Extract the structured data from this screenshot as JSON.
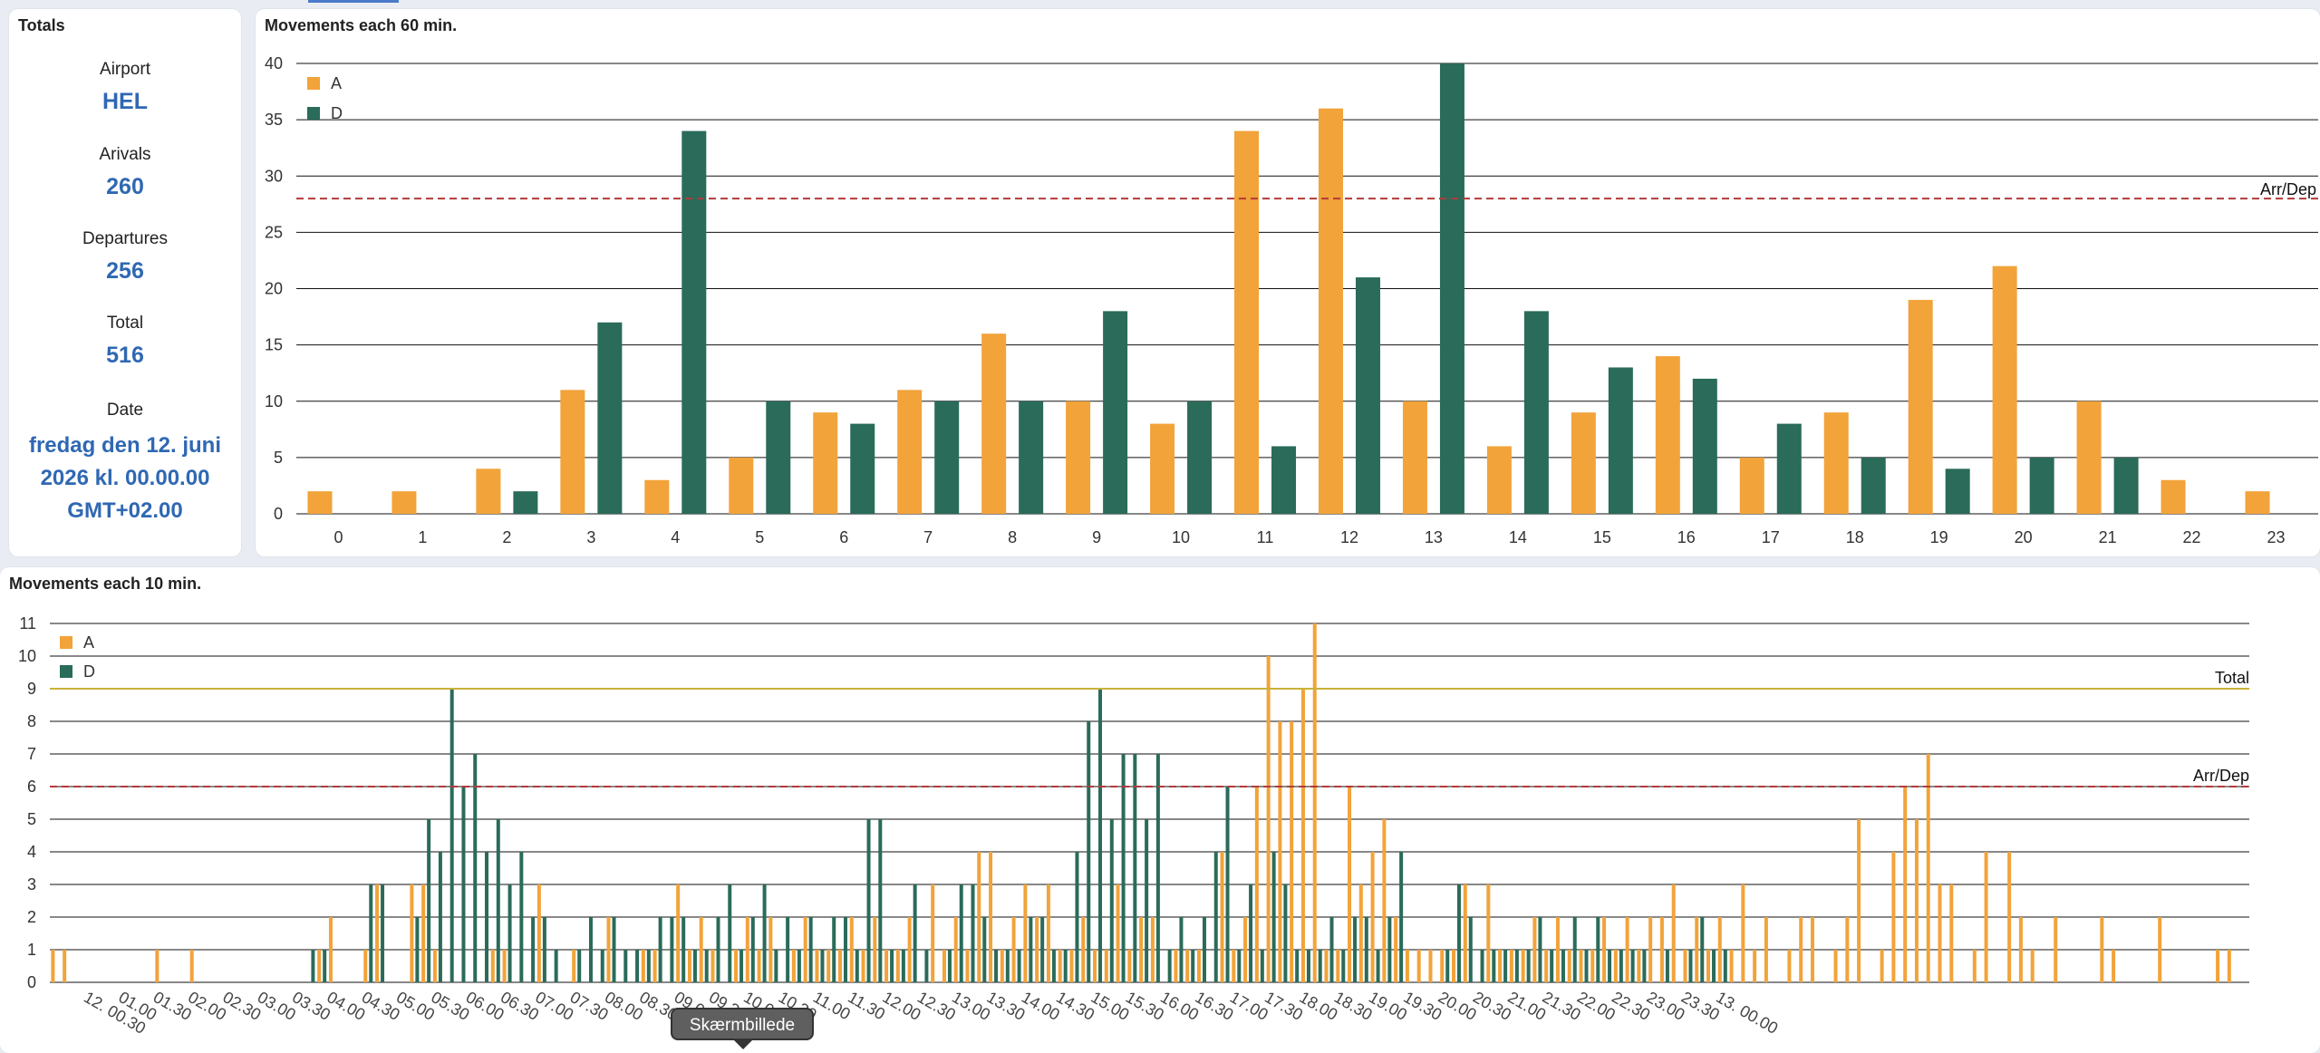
{
  "totals": {
    "title": "Totals",
    "airport_label": "Airport",
    "airport_value": "HEL",
    "arrivals_label": "Arivals",
    "arrivals_value": "260",
    "departures_label": "Departures",
    "departures_value": "256",
    "total_label": "Total",
    "total_value": "516",
    "date_label": "Date",
    "date_line1": "fredag den 12. juni",
    "date_line2": "2026 kl. 00.00.00",
    "date_line3": "GMT+02.00"
  },
  "tooltip": "Skærmbillede",
  "colors": {
    "arrivals": "#f2a33a",
    "departures": "#2a6b5a",
    "capacity": "#b33a3a",
    "total_line": "#c9b23a"
  },
  "chart_data": [
    {
      "type": "bar",
      "title": "Movements each 60 min.",
      "categories": [
        "0",
        "1",
        "2",
        "3",
        "4",
        "5",
        "6",
        "7",
        "8",
        "9",
        "10",
        "11",
        "12",
        "13",
        "14",
        "15",
        "16",
        "17",
        "18",
        "19",
        "20",
        "21",
        "22",
        "23"
      ],
      "series": [
        {
          "name": "A",
          "values": [
            2,
            2,
            4,
            11,
            3,
            5,
            9,
            11,
            16,
            10,
            8,
            34,
            36,
            10,
            6,
            9,
            14,
            5,
            9,
            19,
            22,
            10,
            3,
            2
          ]
        },
        {
          "name": "D",
          "values": [
            0,
            0,
            2,
            17,
            34,
            10,
            8,
            10,
            10,
            18,
            10,
            6,
            21,
            40,
            18,
            13,
            12,
            8,
            5,
            4,
            5,
            5,
            0,
            0
          ]
        }
      ],
      "yticks": [
        0,
        5,
        10,
        15,
        20,
        25,
        30,
        35,
        40
      ],
      "ylim": [
        0,
        40
      ],
      "reference_lines": [
        {
          "label": "Arr/Dep",
          "value": 28
        }
      ],
      "legend": "top-left",
      "grid": true
    },
    {
      "type": "bar",
      "title": "Movements each 10 min.",
      "xtick_labels": [
        "12. 00.30",
        "01.00",
        "01.30",
        "02.00",
        "02.30",
        "03.00",
        "03.30",
        "04.00",
        "04.30",
        "05.00",
        "05.30",
        "06.00",
        "06.30",
        "07.00",
        "07.30",
        "08.00",
        "08.30",
        "09.00",
        "09.30",
        "10.00",
        "10.30",
        "11.00",
        "11.30",
        "12.00",
        "12.30",
        "13.00",
        "13.30",
        "14.00",
        "14.30",
        "15.00",
        "15.30",
        "16.00",
        "16.30",
        "17.00",
        "17.30",
        "18.00",
        "18.30",
        "19.00",
        "19.30",
        "20.00",
        "20.30",
        "21.00",
        "21.30",
        "22.00",
        "22.30",
        "23.00",
        "23.30",
        "13. 00.00"
      ],
      "series": [
        {
          "name": "A",
          "values": [
            1,
            1,
            0,
            0,
            0,
            0,
            0,
            0,
            0,
            1,
            0,
            0,
            1,
            0,
            0,
            0,
            0,
            0,
            0,
            0,
            0,
            0,
            0,
            1,
            2,
            0,
            0,
            1,
            3,
            0,
            0,
            3,
            3,
            1,
            0,
            0,
            0,
            0,
            1,
            1,
            0,
            0,
            3,
            0,
            0,
            1,
            0,
            0,
            2,
            0,
            0,
            1,
            1,
            0,
            3,
            1,
            2,
            1,
            0,
            1,
            2,
            1,
            2,
            0,
            1,
            2,
            1,
            1,
            1,
            2,
            1,
            2,
            1,
            1,
            2,
            0,
            3,
            1,
            2,
            1,
            4,
            4,
            1,
            2,
            3,
            2,
            3,
            1,
            1,
            2,
            1,
            1,
            3,
            1,
            2,
            2,
            0,
            1,
            1,
            1,
            0,
            4,
            1,
            2,
            6,
            10,
            8,
            8,
            9,
            11,
            1,
            1,
            6,
            3,
            4,
            5,
            2,
            1,
            1,
            1,
            1,
            1,
            3,
            0,
            3,
            1,
            1,
            1,
            2,
            1,
            2,
            1,
            1,
            1,
            2,
            1,
            2,
            1,
            2,
            2,
            3,
            1,
            2,
            1,
            2,
            1,
            3,
            1,
            2,
            0,
            1,
            2,
            2,
            0,
            1,
            2,
            5,
            0,
            1,
            4,
            6,
            5,
            7,
            3,
            3,
            0,
            1,
            4,
            0,
            4,
            2,
            1,
            0,
            2,
            0,
            0,
            0,
            2,
            1,
            0,
            0,
            0,
            2,
            0,
            0,
            0,
            0,
            1,
            1,
            0
          ]
        },
        {
          "name": "D",
          "values": [
            0,
            0,
            0,
            0,
            0,
            0,
            0,
            0,
            0,
            0,
            0,
            0,
            0,
            0,
            0,
            0,
            0,
            0,
            0,
            0,
            0,
            0,
            1,
            1,
            0,
            0,
            0,
            3,
            3,
            0,
            0,
            2,
            5,
            4,
            9,
            6,
            7,
            4,
            5,
            3,
            4,
            2,
            2,
            1,
            0,
            1,
            2,
            1,
            2,
            1,
            1,
            1,
            2,
            2,
            2,
            1,
            1,
            2,
            3,
            1,
            2,
            3,
            1,
            2,
            1,
            2,
            1,
            2,
            2,
            1,
            5,
            5,
            1,
            1,
            3,
            1,
            0,
            1,
            3,
            3,
            2,
            1,
            1,
            1,
            2,
            2,
            1,
            1,
            4,
            8,
            9,
            5,
            7,
            7,
            5,
            7,
            1,
            2,
            1,
            2,
            4,
            6,
            1,
            3,
            1,
            4,
            3,
            1,
            1,
            1,
            2,
            1,
            2,
            2,
            1,
            2,
            4,
            0,
            0,
            0,
            1,
            3,
            2,
            1,
            1,
            1,
            1,
            1,
            2,
            1,
            1,
            2,
            1,
            2,
            1,
            1,
            1,
            1,
            0,
            1,
            0,
            1,
            2,
            1,
            1,
            0,
            0,
            0,
            0,
            0,
            0,
            0,
            0,
            0,
            0,
            0,
            0,
            0,
            0,
            0,
            0,
            0,
            0,
            0,
            0,
            0,
            0,
            0,
            0,
            0,
            0,
            0,
            0,
            0,
            0,
            0,
            0,
            0,
            0,
            0,
            0,
            0,
            0,
            0,
            0,
            0,
            0,
            0,
            0,
            0,
            0,
            0,
            0,
            0,
            0,
            0,
            0,
            0,
            0
          ]
        }
      ],
      "yticks": [
        0,
        1,
        2,
        3,
        4,
        5,
        6,
        7,
        8,
        9,
        10,
        11
      ],
      "ylim": [
        0,
        11
      ],
      "reference_lines": [
        {
          "label": "Total",
          "value": 9
        },
        {
          "label": "Arr/Dep",
          "value": 6
        }
      ],
      "legend": "top-left",
      "grid": true
    }
  ]
}
